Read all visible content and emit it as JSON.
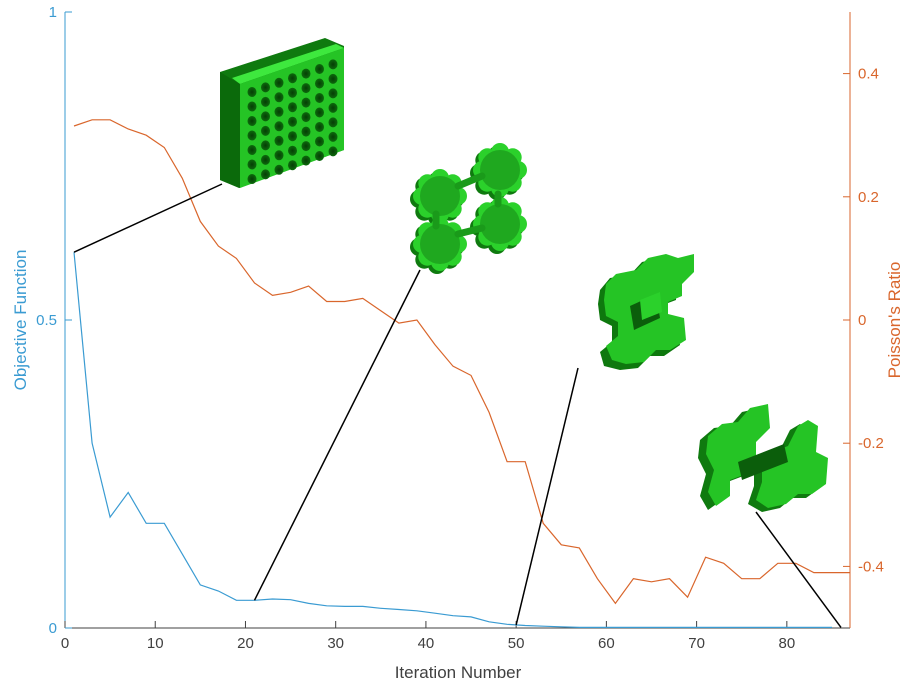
{
  "chart_data": {
    "type": "line",
    "title": "",
    "xlabel": "Iteration Number",
    "ylabel_left": "Objective Function",
    "ylabel_right": "Poisson's Ratio",
    "xlim": [
      0,
      87
    ],
    "ylim_left": [
      0,
      1
    ],
    "ylim_right": [
      -0.5,
      0.5
    ],
    "x_ticks": [
      "0",
      "10",
      "20",
      "30",
      "40",
      "50",
      "60",
      "70",
      "80"
    ],
    "y_left_ticks": [
      "0",
      "0.5",
      "1"
    ],
    "y_right_ticks": [
      "-0.4",
      "-0.2",
      "0",
      "0.2",
      "0.4"
    ],
    "grid": false,
    "colors": {
      "objective": "#3a9bd2",
      "poisson": "#d9662c",
      "axis": "#404040",
      "structure": "#2bd12b",
      "structure_dark": "#0f7a0f"
    },
    "series": [
      {
        "axis": "left",
        "x": [
          1,
          3,
          5,
          7,
          9,
          11,
          13,
          15,
          17,
          19,
          21,
          23,
          25,
          27,
          29,
          31,
          33,
          35,
          37,
          39,
          41,
          43,
          45,
          47,
          49,
          51,
          53,
          55,
          57,
          59,
          61,
          63,
          65,
          67,
          69,
          71,
          73,
          75,
          77,
          79,
          81,
          83,
          85
        ],
        "values": [
          0.61,
          0.3,
          0.18,
          0.22,
          0.17,
          0.17,
          0.12,
          0.07,
          0.06,
          0.045,
          0.045,
          0.047,
          0.046,
          0.04,
          0.036,
          0.035,
          0.035,
          0.032,
          0.03,
          0.028,
          0.024,
          0.02,
          0.018,
          0.01,
          0.006,
          0.004,
          0.003,
          0.002,
          0.001,
          0.001,
          0.001,
          0.001,
          0.001,
          0.001,
          0.001,
          0.001,
          0.001,
          0.001,
          0.001,
          0.001,
          0.001,
          0.001,
          0.001
        ]
      },
      {
        "axis": "right",
        "x": [
          1,
          3,
          5,
          7,
          9,
          11,
          13,
          15,
          17,
          19,
          21,
          23,
          25,
          27,
          29,
          31,
          33,
          35,
          37,
          39,
          41,
          43,
          45,
          47,
          49,
          51,
          53,
          55,
          57,
          59,
          61,
          63,
          65,
          67,
          69,
          71,
          73,
          75,
          77,
          79,
          81,
          83,
          85,
          87
        ],
        "values": [
          0.315,
          0.325,
          0.325,
          0.31,
          0.3,
          0.28,
          0.23,
          0.16,
          0.12,
          0.1,
          0.06,
          0.04,
          0.045,
          0.055,
          0.03,
          0.03,
          0.035,
          0.015,
          -0.005,
          0.0,
          -0.04,
          -0.075,
          -0.09,
          -0.15,
          -0.23,
          -0.23,
          -0.33,
          -0.365,
          -0.37,
          -0.42,
          -0.46,
          -0.42,
          -0.425,
          -0.42,
          -0.45,
          -0.385,
          -0.395,
          -0.42,
          -0.42,
          -0.395,
          -0.395,
          -0.41,
          -0.41,
          -0.41
        ]
      }
    ],
    "annotations": [
      {
        "x": 1,
        "y": 0.61,
        "structure": "dense-lattice"
      },
      {
        "x": 21,
        "y": 0.045,
        "structure": "four-lobed-cell"
      },
      {
        "x": 50,
        "y": 0.005,
        "structure": "reentrant-frame"
      },
      {
        "x": 86,
        "y": 0.001,
        "structure": "h-shaped-cell"
      }
    ]
  }
}
